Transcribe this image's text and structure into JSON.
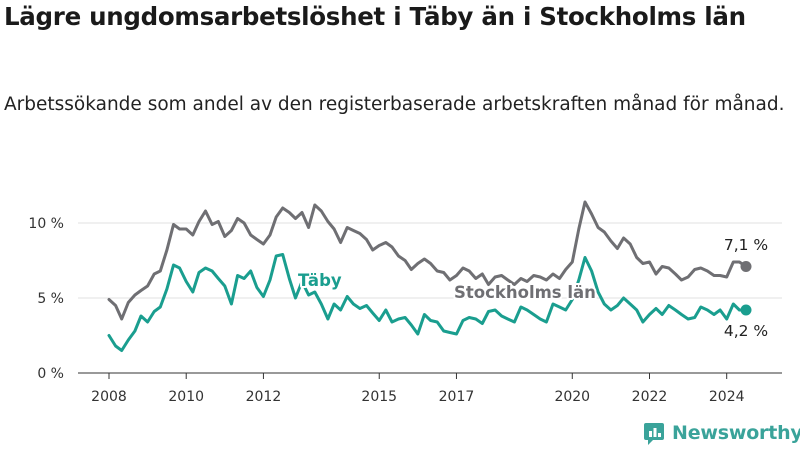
{
  "header": {
    "title": "Lägre ungdomsarbetslöshet i Täby än i Stockholms län",
    "subtitle": "Arbetssökande som andel av den registerbaserade arbetskraften månad för månad."
  },
  "brand": {
    "name": "Newsworthy",
    "color": "#3aa39a"
  },
  "chart_data": {
    "type": "line",
    "title": "Lägre ungdomsarbetslöshet i Täby än i Stockholms län",
    "subtitle": "Arbetssökande som andel av den registerbaserade arbetskraften månad för månad.",
    "xlabel": "",
    "ylabel": "",
    "x_ticks": [
      "2008",
      "2010",
      "2012",
      "2015",
      "2017",
      "2020",
      "2022",
      "2024"
    ],
    "y_ticks": [
      "0 %",
      "5 %",
      "10 %"
    ],
    "ylim": [
      0,
      12
    ],
    "grid": true,
    "series": [
      {
        "name": "Stockholms län",
        "color": "#6f6f73",
        "end_label": "7,1 %",
        "points": [
          [
            2008.0,
            4.9
          ],
          [
            2008.17,
            4.5
          ],
          [
            2008.33,
            3.6
          ],
          [
            2008.5,
            4.7
          ],
          [
            2008.67,
            5.2
          ],
          [
            2008.83,
            5.5
          ],
          [
            2009.0,
            5.8
          ],
          [
            2009.17,
            6.6
          ],
          [
            2009.33,
            6.8
          ],
          [
            2009.5,
            8.2
          ],
          [
            2009.67,
            9.9
          ],
          [
            2009.83,
            9.6
          ],
          [
            2010.0,
            9.6
          ],
          [
            2010.17,
            9.2
          ],
          [
            2010.33,
            10.1
          ],
          [
            2010.5,
            10.8
          ],
          [
            2010.67,
            9.9
          ],
          [
            2010.83,
            10.1
          ],
          [
            2011.0,
            9.1
          ],
          [
            2011.17,
            9.5
          ],
          [
            2011.33,
            10.3
          ],
          [
            2011.5,
            10.0
          ],
          [
            2011.67,
            9.2
          ],
          [
            2011.83,
            8.9
          ],
          [
            2012.0,
            8.6
          ],
          [
            2012.17,
            9.2
          ],
          [
            2012.33,
            10.4
          ],
          [
            2012.5,
            11.0
          ],
          [
            2012.67,
            10.7
          ],
          [
            2012.83,
            10.3
          ],
          [
            2013.0,
            10.7
          ],
          [
            2013.17,
            9.7
          ],
          [
            2013.33,
            11.2
          ],
          [
            2013.5,
            10.8
          ],
          [
            2013.67,
            10.1
          ],
          [
            2013.83,
            9.6
          ],
          [
            2014.0,
            8.7
          ],
          [
            2014.17,
            9.7
          ],
          [
            2014.33,
            9.5
          ],
          [
            2014.5,
            9.3
          ],
          [
            2014.67,
            8.9
          ],
          [
            2014.83,
            8.2
          ],
          [
            2015.0,
            8.5
          ],
          [
            2015.17,
            8.7
          ],
          [
            2015.33,
            8.4
          ],
          [
            2015.5,
            7.8
          ],
          [
            2015.67,
            7.5
          ],
          [
            2015.83,
            6.9
          ],
          [
            2016.0,
            7.3
          ],
          [
            2016.17,
            7.6
          ],
          [
            2016.33,
            7.3
          ],
          [
            2016.5,
            6.8
          ],
          [
            2016.67,
            6.7
          ],
          [
            2016.83,
            6.2
          ],
          [
            2017.0,
            6.5
          ],
          [
            2017.17,
            7.0
          ],
          [
            2017.33,
            6.8
          ],
          [
            2017.5,
            6.3
          ],
          [
            2017.67,
            6.6
          ],
          [
            2017.83,
            5.9
          ],
          [
            2018.0,
            6.4
          ],
          [
            2018.17,
            6.5
          ],
          [
            2018.33,
            6.2
          ],
          [
            2018.5,
            5.9
          ],
          [
            2018.67,
            6.3
          ],
          [
            2018.83,
            6.1
          ],
          [
            2019.0,
            6.5
          ],
          [
            2019.17,
            6.4
          ],
          [
            2019.33,
            6.2
          ],
          [
            2019.5,
            6.6
          ],
          [
            2019.67,
            6.3
          ],
          [
            2019.83,
            6.9
          ],
          [
            2020.0,
            7.4
          ],
          [
            2020.17,
            9.6
          ],
          [
            2020.33,
            11.4
          ],
          [
            2020.5,
            10.6
          ],
          [
            2020.67,
            9.7
          ],
          [
            2020.83,
            9.4
          ],
          [
            2021.0,
            8.8
          ],
          [
            2021.17,
            8.3
          ],
          [
            2021.33,
            9.0
          ],
          [
            2021.5,
            8.6
          ],
          [
            2021.67,
            7.7
          ],
          [
            2021.83,
            7.3
          ],
          [
            2022.0,
            7.4
          ],
          [
            2022.17,
            6.6
          ],
          [
            2022.33,
            7.1
          ],
          [
            2022.5,
            7.0
          ],
          [
            2022.67,
            6.6
          ],
          [
            2022.83,
            6.2
          ],
          [
            2023.0,
            6.4
          ],
          [
            2023.17,
            6.9
          ],
          [
            2023.33,
            7.0
          ],
          [
            2023.5,
            6.8
          ],
          [
            2023.67,
            6.5
          ],
          [
            2023.83,
            6.5
          ],
          [
            2024.0,
            6.4
          ],
          [
            2024.17,
            7.4
          ],
          [
            2024.33,
            7.4
          ],
          [
            2024.5,
            7.1
          ]
        ]
      },
      {
        "name": "Täby",
        "color": "#1a9e8f",
        "end_label": "4,2 %",
        "points": [
          [
            2008.0,
            2.5
          ],
          [
            2008.17,
            1.8
          ],
          [
            2008.33,
            1.5
          ],
          [
            2008.5,
            2.2
          ],
          [
            2008.67,
            2.8
          ],
          [
            2008.83,
            3.8
          ],
          [
            2009.0,
            3.4
          ],
          [
            2009.17,
            4.1
          ],
          [
            2009.33,
            4.4
          ],
          [
            2009.5,
            5.6
          ],
          [
            2009.67,
            7.2
          ],
          [
            2009.83,
            7.0
          ],
          [
            2010.0,
            6.1
          ],
          [
            2010.17,
            5.4
          ],
          [
            2010.33,
            6.7
          ],
          [
            2010.5,
            7.0
          ],
          [
            2010.67,
            6.8
          ],
          [
            2010.83,
            6.3
          ],
          [
            2011.0,
            5.8
          ],
          [
            2011.17,
            4.6
          ],
          [
            2011.33,
            6.5
          ],
          [
            2011.5,
            6.3
          ],
          [
            2011.67,
            6.8
          ],
          [
            2011.83,
            5.7
          ],
          [
            2012.0,
            5.1
          ],
          [
            2012.17,
            6.2
          ],
          [
            2012.33,
            7.8
          ],
          [
            2012.5,
            7.9
          ],
          [
            2012.67,
            6.3
          ],
          [
            2012.83,
            5.0
          ],
          [
            2013.0,
            6.1
          ],
          [
            2013.17,
            5.2
          ],
          [
            2013.33,
            5.4
          ],
          [
            2013.5,
            4.6
          ],
          [
            2013.67,
            3.6
          ],
          [
            2013.83,
            4.6
          ],
          [
            2014.0,
            4.2
          ],
          [
            2014.17,
            5.1
          ],
          [
            2014.33,
            4.6
          ],
          [
            2014.5,
            4.3
          ],
          [
            2014.67,
            4.5
          ],
          [
            2014.83,
            4.0
          ],
          [
            2015.0,
            3.5
          ],
          [
            2015.17,
            4.2
          ],
          [
            2015.33,
            3.4
          ],
          [
            2015.5,
            3.6
          ],
          [
            2015.67,
            3.7
          ],
          [
            2015.83,
            3.2
          ],
          [
            2016.0,
            2.6
          ],
          [
            2016.17,
            3.9
          ],
          [
            2016.33,
            3.5
          ],
          [
            2016.5,
            3.4
          ],
          [
            2016.67,
            2.8
          ],
          [
            2016.83,
            2.7
          ],
          [
            2017.0,
            2.6
          ],
          [
            2017.17,
            3.5
          ],
          [
            2017.33,
            3.7
          ],
          [
            2017.5,
            3.6
          ],
          [
            2017.67,
            3.3
          ],
          [
            2017.83,
            4.1
          ],
          [
            2018.0,
            4.2
          ],
          [
            2018.17,
            3.8
          ],
          [
            2018.33,
            3.6
          ],
          [
            2018.5,
            3.4
          ],
          [
            2018.67,
            4.4
          ],
          [
            2018.83,
            4.2
          ],
          [
            2019.0,
            3.9
          ],
          [
            2019.17,
            3.6
          ],
          [
            2019.33,
            3.4
          ],
          [
            2019.5,
            4.6
          ],
          [
            2019.67,
            4.4
          ],
          [
            2019.83,
            4.2
          ],
          [
            2020.0,
            4.9
          ],
          [
            2020.17,
            6.2
          ],
          [
            2020.33,
            7.7
          ],
          [
            2020.5,
            6.8
          ],
          [
            2020.67,
            5.4
          ],
          [
            2020.83,
            4.6
          ],
          [
            2021.0,
            4.2
          ],
          [
            2021.17,
            4.5
          ],
          [
            2021.33,
            5.0
          ],
          [
            2021.5,
            4.6
          ],
          [
            2021.67,
            4.2
          ],
          [
            2021.83,
            3.4
          ],
          [
            2022.0,
            3.9
          ],
          [
            2022.17,
            4.3
          ],
          [
            2022.33,
            3.9
          ],
          [
            2022.5,
            4.5
          ],
          [
            2022.67,
            4.2
          ],
          [
            2022.83,
            3.9
          ],
          [
            2023.0,
            3.6
          ],
          [
            2023.17,
            3.7
          ],
          [
            2023.33,
            4.4
          ],
          [
            2023.5,
            4.2
          ],
          [
            2023.67,
            3.9
          ],
          [
            2023.83,
            4.2
          ],
          [
            2024.0,
            3.6
          ],
          [
            2024.17,
            4.6
          ],
          [
            2024.33,
            4.2
          ],
          [
            2024.5,
            4.2
          ]
        ]
      }
    ]
  }
}
